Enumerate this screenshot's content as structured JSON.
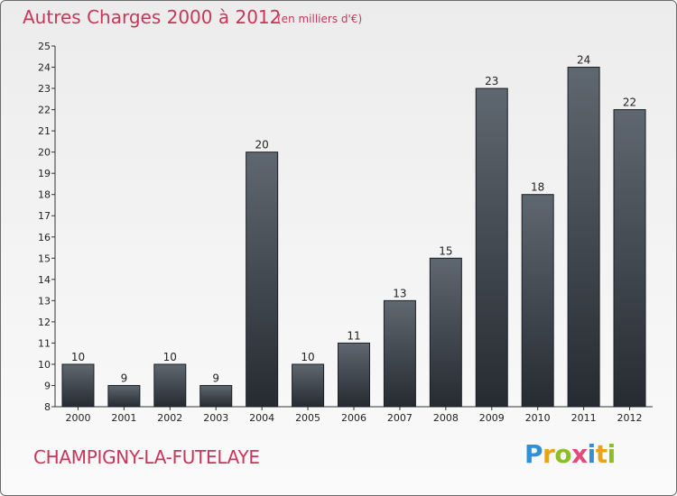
{
  "header": {
    "title": "Autres Charges 2000 à 2012",
    "subtitle": "(en milliers d'€)"
  },
  "footer": {
    "commune": "CHAMPIGNY-LA-FUTELAYE",
    "logo_letters": [
      "P",
      "r",
      "o",
      "x",
      "i",
      "t",
      "i"
    ]
  },
  "colors": {
    "accent": "#c8365a",
    "bar_top": "#5f6770",
    "bar_bottom": "#262b31"
  },
  "chart_data": {
    "type": "bar",
    "title": "Autres Charges 2000 à 2012",
    "subtitle": "(en milliers d'€)",
    "categories": [
      "2000",
      "2001",
      "2002",
      "2003",
      "2004",
      "2005",
      "2006",
      "2007",
      "2008",
      "2009",
      "2010",
      "2011",
      "2012"
    ],
    "values": [
      10,
      9,
      10,
      9,
      20,
      10,
      11,
      13,
      15,
      23,
      18,
      24,
      22
    ],
    "ylim": [
      8,
      25
    ],
    "yticks": [
      8,
      9,
      10,
      11,
      12,
      13,
      14,
      15,
      16,
      17,
      18,
      19,
      20,
      21,
      22,
      23,
      24,
      25
    ],
    "grid": false,
    "legend": "none",
    "data_labels": true
  }
}
